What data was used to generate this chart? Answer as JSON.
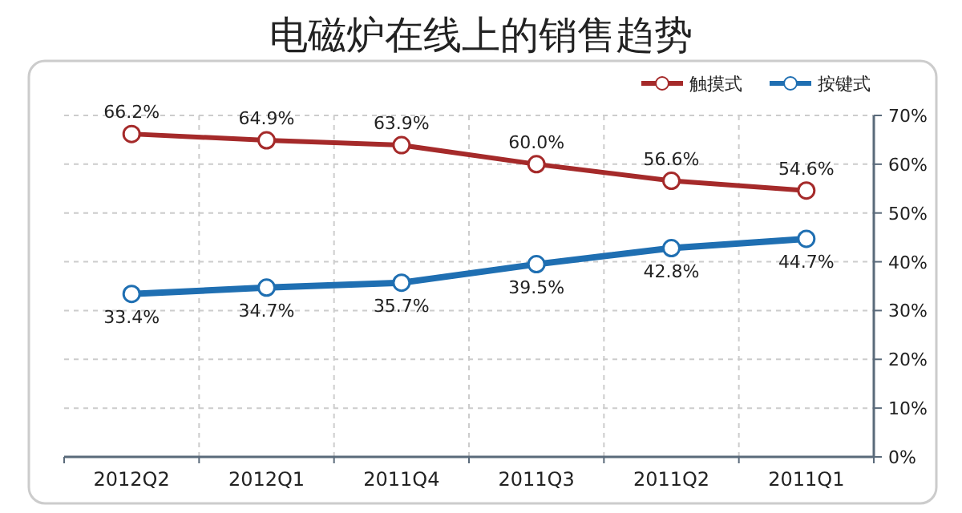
{
  "chart_data": {
    "type": "line",
    "title": "电磁炉在线上的销售趋势",
    "categories": [
      "2012Q2",
      "2012Q1",
      "2011Q4",
      "2011Q3",
      "2011Q2",
      "2011Q1"
    ],
    "series": [
      {
        "name": "触摸式",
        "color": "#a52a2a",
        "values": [
          66.2,
          64.9,
          63.9,
          60.0,
          56.6,
          54.6
        ],
        "value_labels": [
          "66.2%",
          "64.9%",
          "63.9%",
          "60.0%",
          "56.6%",
          "54.6%"
        ],
        "marker": "circle"
      },
      {
        "name": "按键式",
        "color": "#1f6fb2",
        "values": [
          33.4,
          34.7,
          35.7,
          39.5,
          42.8,
          44.7
        ],
        "value_labels": [
          "33.4%",
          "34.7%",
          "35.7%",
          "39.5%",
          "42.8%",
          "44.7%"
        ],
        "marker": "circle"
      }
    ],
    "ylim": [
      0,
      70
    ],
    "yticks": [
      {
        "value": 0,
        "label": "0%"
      },
      {
        "value": 10,
        "label": "10%"
      },
      {
        "value": 20,
        "label": "20%"
      },
      {
        "value": 30,
        "label": "30%"
      },
      {
        "value": 40,
        "label": "40%"
      },
      {
        "value": 50,
        "label": "50%"
      },
      {
        "value": 60,
        "label": "60%"
      },
      {
        "value": 70,
        "label": "70%"
      }
    ],
    "grid": true,
    "legend": "top right"
  }
}
